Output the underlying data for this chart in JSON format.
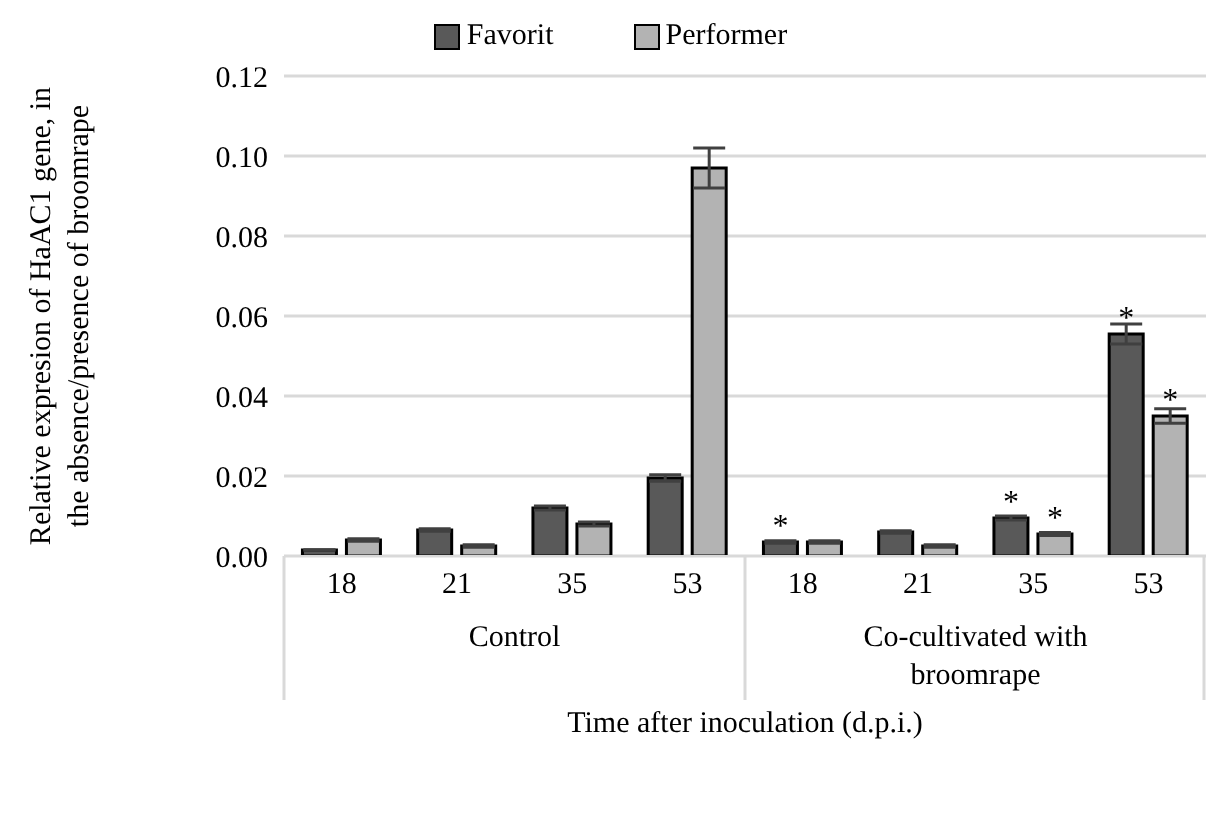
{
  "chart_data": {
    "type": "bar",
    "ylabel": "Relative expresion of HaAC1 gene, in the absence/presence of broomrape",
    "xlabel": "Time after inoculation (d.p.i.)",
    "categories": [
      "18",
      "21",
      "35",
      "53",
      "18",
      "21",
      "35",
      "53"
    ],
    "series": [
      {
        "name": "Favorit",
        "color": "#595959",
        "values": [
          0.0015,
          0.0065,
          0.012,
          0.0195,
          0.0035,
          0.006,
          0.0095,
          0.0555
        ],
        "errors": [
          null,
          0.0003,
          0.0005,
          0.0008,
          0.0003,
          0.0003,
          0.0005,
          0.0025
        ],
        "value_labels": [
          null,
          null,
          null,
          null,
          "*",
          null,
          "*",
          "*"
        ]
      },
      {
        "name": "Performer",
        "color": "#b3b3b3",
        "values": [
          0.004,
          0.0025,
          0.008,
          0.097,
          0.0035,
          0.0025,
          0.0055,
          0.035
        ],
        "errors": [
          0.0003,
          0.0003,
          0.0005,
          0.005,
          0.0003,
          0.0003,
          0.0004,
          0.0018
        ],
        "value_labels": [
          null,
          null,
          null,
          null,
          null,
          null,
          "*",
          "*"
        ]
      }
    ],
    "annotations": [
      "Control",
      "Co-cultivated with broomrape"
    ],
    "ylim": [
      0,
      0.12
    ],
    "yticks": [
      {
        "value": 0,
        "label": "0.00"
      },
      {
        "value": 0.02,
        "label": "0.02"
      },
      {
        "value": 0.04,
        "label": "0.04"
      },
      {
        "value": 0.06,
        "label": "0.06"
      },
      {
        "value": 0.08,
        "label": "0.08"
      },
      {
        "value": 0.1,
        "label": "0.10"
      },
      {
        "value": 0.12,
        "label": "0.12"
      }
    ],
    "grid": "y",
    "legend": "top"
  }
}
